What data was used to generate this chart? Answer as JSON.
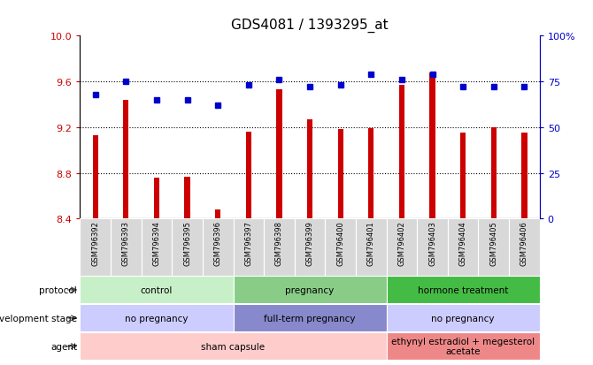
{
  "title": "GDS4081 / 1393295_at",
  "samples": [
    "GSM796392",
    "GSM796393",
    "GSM796394",
    "GSM796395",
    "GSM796396",
    "GSM796397",
    "GSM796398",
    "GSM796399",
    "GSM796400",
    "GSM796401",
    "GSM796402",
    "GSM796403",
    "GSM796404",
    "GSM796405",
    "GSM796406"
  ],
  "bar_values": [
    9.13,
    9.44,
    8.76,
    8.77,
    8.48,
    9.16,
    9.53,
    9.27,
    9.18,
    9.19,
    9.57,
    9.68,
    9.15,
    9.2,
    9.15
  ],
  "dot_values": [
    68,
    75,
    65,
    65,
    62,
    73,
    76,
    72,
    73,
    79,
    76,
    79,
    72,
    72,
    72
  ],
  "ylim_left": [
    8.4,
    10.0
  ],
  "ylim_right": [
    0,
    100
  ],
  "yticks_left": [
    8.4,
    8.8,
    9.2,
    9.6,
    10.0
  ],
  "yticks_right": [
    0,
    25,
    50,
    75,
    100
  ],
  "bar_color": "#cc0000",
  "dot_color": "#0000cc",
  "protocol_groups": [
    {
      "label": "control",
      "start": 0,
      "end": 4,
      "color": "#c8f0c8"
    },
    {
      "label": "pregnancy",
      "start": 5,
      "end": 9,
      "color": "#88cc88"
    },
    {
      "label": "hormone treatment",
      "start": 10,
      "end": 14,
      "color": "#44bb44"
    }
  ],
  "dev_stage_groups": [
    {
      "label": "no pregnancy",
      "start": 0,
      "end": 4,
      "color": "#ccccff"
    },
    {
      "label": "full-term pregnancy",
      "start": 5,
      "end": 9,
      "color": "#8888cc"
    },
    {
      "label": "no pregnancy",
      "start": 10,
      "end": 14,
      "color": "#ccccff"
    }
  ],
  "agent_groups": [
    {
      "label": "sham capsule",
      "start": 0,
      "end": 9,
      "color": "#ffcccc"
    },
    {
      "label": "ethynyl estradiol + megesterol\nacetate",
      "start": 10,
      "end": 14,
      "color": "#ee8888"
    }
  ],
  "row_labels": [
    "protocol",
    "development stage",
    "agent"
  ]
}
